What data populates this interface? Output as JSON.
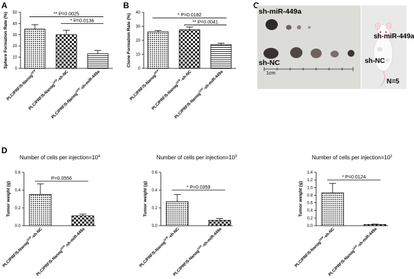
{
  "panels": {
    "A": {
      "letter": "A"
    },
    "B": {
      "letter": "B"
    },
    "C": {
      "letter": "C"
    },
    "D": {
      "letter": "D"
    }
  },
  "photo": {
    "label_top": "sh-miR-449a",
    "label_bottom": "sh-NC",
    "scale": "1cm",
    "label_mouse_top": "sh-miR-449a",
    "label_mouse_bottom": "sh-NC",
    "n_label": "N=5"
  },
  "chart_data": [
    {
      "id": "A",
      "type": "bar",
      "ylabel": "Sphere Formation Rate (%)",
      "ylim": [
        0,
        50
      ],
      "yticks": [
        0,
        10,
        20,
        30,
        40,
        50
      ],
      "categories": [
        "PLC/PRF/5-Nanog",
        "PLC/PRF/5-Nanog -sh-NC",
        "PLC/PRF/5-Nanog -sh-miR-449a"
      ],
      "cat_sup": [
        "GFP",
        "GFP",
        "GFP"
      ],
      "values": [
        35,
        30,
        13
      ],
      "errors": [
        4,
        4,
        3
      ],
      "patterns": [
        "dots",
        "check",
        "hlines"
      ],
      "annotations": [
        {
          "from": 0,
          "to": 2,
          "y": 46,
          "stars": "**",
          "text": "P=0.0025"
        },
        {
          "from": 1,
          "to": 2,
          "y": 40,
          "stars": "*",
          "text": "P=0.0136"
        }
      ]
    },
    {
      "id": "B",
      "type": "bar",
      "ylabel": "Clone Formation Rate (%)",
      "ylim": [
        0,
        40
      ],
      "yticks": [
        0,
        10,
        20,
        30,
        40
      ],
      "categories": [
        "PLC/PRF/5-Nanog",
        "PLC/PRF/5-Nanog -sh-NC",
        "PLC/PRF/5-Nanog -sh-miR-449a"
      ],
      "cat_sup": [
        "GFP",
        "GFP",
        "GFP"
      ],
      "values": [
        26,
        27.5,
        17
      ],
      "errors": [
        1,
        2,
        1
      ],
      "patterns": [
        "dots",
        "check",
        "hlines"
      ],
      "annotations": [
        {
          "from": 0,
          "to": 2,
          "y": 36,
          "stars": "*",
          "text": "P=0.0182"
        },
        {
          "from": 1,
          "to": 2,
          "y": 31,
          "stars": "**",
          "text": "P=0.0041"
        }
      ]
    },
    {
      "id": "D1",
      "type": "bar",
      "title": "Number of cells per injection=10",
      "title_sup": "4",
      "ylabel": "Tumor weight (g)",
      "ylim": [
        0,
        0.6
      ],
      "yticks": [
        0.0,
        0.2,
        0.4,
        0.6
      ],
      "categories": [
        "PLC/PRF/5-Nanog -sh-NC",
        "PLC/PRF/5-Nanog -sh-miR-449a"
      ],
      "cat_sup": [
        "GFP",
        "GFP"
      ],
      "values": [
        0.35,
        0.11
      ],
      "errors": [
        0.12,
        0.02
      ],
      "patterns": [
        "dots",
        "check"
      ],
      "annotations": [
        {
          "from": 0,
          "to": 1,
          "y": 0.5,
          "stars": "",
          "text": "P=0.0556"
        }
      ]
    },
    {
      "id": "D2",
      "type": "bar",
      "title": "Number of cells per injection=10",
      "title_sup": "3",
      "ylabel": "Tumor weight (g)",
      "ylim": [
        0,
        0.6
      ],
      "yticks": [
        0.0,
        0.2,
        0.4,
        0.6
      ],
      "categories": [
        "PLC/PRF/5-Nanog -sh-NC",
        "PLC/PRF/5-Nanog -sh-miR-449a"
      ],
      "cat_sup": [
        "GFP",
        "GFP"
      ],
      "values": [
        0.27,
        0.06
      ],
      "errors": [
        0.08,
        0.02
      ],
      "patterns": [
        "dots",
        "check"
      ],
      "annotations": [
        {
          "from": 0,
          "to": 1,
          "y": 0.4,
          "stars": "*",
          "text": "P=0.0359"
        }
      ]
    },
    {
      "id": "D3",
      "type": "bar",
      "title": "Number of cells per injection=10",
      "title_sup": "2",
      "ylabel": "Tumor weight (g)",
      "ylim": [
        0,
        1.4
      ],
      "yticks": [
        0.0,
        0.2,
        0.4,
        0.6,
        0.8,
        1.0,
        1.2,
        1.4
      ],
      "categories": [
        "PLC/PRF/5-Nanog -sh-NC",
        "PLC/PRF/5-Nanog -sh-miR-449a"
      ],
      "cat_sup": [
        "GFP",
        "GFP"
      ],
      "values": [
        0.86,
        0.03
      ],
      "errors": [
        0.25,
        0.01
      ],
      "patterns": [
        "dots",
        "check"
      ],
      "annotations": [
        {
          "from": 0,
          "to": 1,
          "y": 1.2,
          "stars": "*",
          "text": "P=0.0124"
        }
      ]
    }
  ]
}
